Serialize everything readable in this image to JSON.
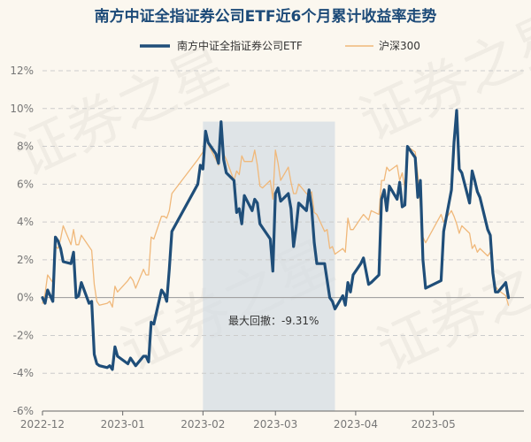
{
  "chart_data": {
    "type": "line",
    "title": "南方中证全指证券公司ETF近6个月累计收益率走势",
    "y_unit": "%",
    "ylim": [
      -6,
      12
    ],
    "yticks": [
      -6,
      -4,
      -2,
      0,
      2,
      4,
      6,
      8,
      10,
      12
    ],
    "xlim": [
      "2022-12-01",
      "2023-06-05"
    ],
    "xticks": [
      {
        "date": "2022-12-01",
        "label": "2022-12"
      },
      {
        "date": "2023-01-01",
        "label": "2023-01"
      },
      {
        "date": "2023-02-01",
        "label": "2023-02"
      },
      {
        "date": "2023-03-01",
        "label": "2023-03"
      },
      {
        "date": "2023-04-01",
        "label": "2023-04"
      },
      {
        "date": "2023-05-01",
        "label": "2023-05"
      }
    ],
    "grid": "horizontal dashed",
    "legend_position": "top",
    "series": [
      {
        "name": "南方中证全指证券公司ETF",
        "color": "#1f4e79",
        "points": [
          [
            "2022-12-01",
            0.0
          ],
          [
            "2022-12-02",
            -0.3
          ],
          [
            "2022-12-03",
            0.4
          ],
          [
            "2022-12-05",
            -0.2
          ],
          [
            "2022-12-06",
            3.2
          ],
          [
            "2022-12-07",
            3.0
          ],
          [
            "2022-12-08",
            2.6
          ],
          [
            "2022-12-09",
            1.9
          ],
          [
            "2022-12-12",
            1.8
          ],
          [
            "2022-12-13",
            2.4
          ],
          [
            "2022-12-14",
            0.0
          ],
          [
            "2022-12-15",
            0.1
          ],
          [
            "2022-12-16",
            0.8
          ],
          [
            "2022-12-19",
            -0.3
          ],
          [
            "2022-12-20",
            -0.2
          ],
          [
            "2022-12-21",
            -3.0
          ],
          [
            "2022-12-22",
            -3.5
          ],
          [
            "2022-12-23",
            -3.6
          ],
          [
            "2022-12-26",
            -3.7
          ],
          [
            "2022-12-27",
            -3.6
          ],
          [
            "2022-12-28",
            -3.8
          ],
          [
            "2022-12-29",
            -2.6
          ],
          [
            "2022-12-30",
            -3.1
          ],
          [
            "2023-01-03",
            -3.5
          ],
          [
            "2023-01-04",
            -3.2
          ],
          [
            "2023-01-05",
            -3.4
          ],
          [
            "2023-01-06",
            -3.6
          ],
          [
            "2023-01-09",
            -3.1
          ],
          [
            "2023-01-10",
            -3.1
          ],
          [
            "2023-01-11",
            -3.4
          ],
          [
            "2023-01-12",
            -1.3
          ],
          [
            "2023-01-13",
            -1.4
          ],
          [
            "2023-01-16",
            0.4
          ],
          [
            "2023-01-17",
            0.2
          ],
          [
            "2023-01-18",
            -0.2
          ],
          [
            "2023-01-19",
            1.5
          ],
          [
            "2023-01-20",
            3.5
          ],
          [
            "2023-01-30",
            6.0
          ],
          [
            "2023-01-31",
            7.0
          ],
          [
            "2023-02-01",
            6.8
          ],
          [
            "2023-02-02",
            8.8
          ],
          [
            "2023-02-03",
            8.2
          ],
          [
            "2023-02-06",
            7.6
          ],
          [
            "2023-02-07",
            7.1
          ],
          [
            "2023-02-08",
            9.3
          ],
          [
            "2023-02-09",
            7.3
          ],
          [
            "2023-02-10",
            6.6
          ],
          [
            "2023-02-13",
            6.2
          ],
          [
            "2023-02-14",
            4.5
          ],
          [
            "2023-02-15",
            4.7
          ],
          [
            "2023-02-16",
            3.9
          ],
          [
            "2023-02-17",
            5.4
          ],
          [
            "2023-02-20",
            4.6
          ],
          [
            "2023-02-21",
            5.2
          ],
          [
            "2023-02-22",
            5.0
          ],
          [
            "2023-02-23",
            3.9
          ],
          [
            "2023-02-24",
            3.7
          ],
          [
            "2023-02-27",
            3.1
          ],
          [
            "2023-02-28",
            1.4
          ],
          [
            "2023-03-01",
            5.5
          ],
          [
            "2023-03-02",
            5.8
          ],
          [
            "2023-03-03",
            5.1
          ],
          [
            "2023-03-06",
            5.5
          ],
          [
            "2023-03-07",
            4.7
          ],
          [
            "2023-03-08",
            2.7
          ],
          [
            "2023-03-09",
            3.7
          ],
          [
            "2023-03-10",
            5.0
          ],
          [
            "2023-03-13",
            4.6
          ],
          [
            "2023-03-14",
            5.7
          ],
          [
            "2023-03-15",
            4.7
          ],
          [
            "2023-03-16",
            2.9
          ],
          [
            "2023-03-17",
            1.8
          ],
          [
            "2023-03-20",
            1.8
          ],
          [
            "2023-03-21",
            0.9
          ],
          [
            "2023-03-22",
            0.0
          ],
          [
            "2023-03-23",
            -0.2
          ],
          [
            "2023-03-24",
            -0.6
          ],
          [
            "2023-03-27",
            0.1
          ],
          [
            "2023-03-28",
            -0.4
          ],
          [
            "2023-03-29",
            0.8
          ],
          [
            "2023-03-30",
            0.3
          ],
          [
            "2023-03-31",
            1.2
          ],
          [
            "2023-04-03",
            1.8
          ],
          [
            "2023-04-04",
            2.1
          ],
          [
            "2023-04-06",
            0.7
          ],
          [
            "2023-04-07",
            0.8
          ],
          [
            "2023-04-10",
            1.2
          ],
          [
            "2023-04-11",
            5.2
          ],
          [
            "2023-04-12",
            5.7
          ],
          [
            "2023-04-13",
            4.6
          ],
          [
            "2023-04-14",
            5.9
          ],
          [
            "2023-04-17",
            5.2
          ],
          [
            "2023-04-18",
            6.1
          ],
          [
            "2023-04-19",
            4.8
          ],
          [
            "2023-04-20",
            4.9
          ],
          [
            "2023-04-21",
            8.0
          ],
          [
            "2023-04-24",
            7.4
          ],
          [
            "2023-04-25",
            5.3
          ],
          [
            "2023-04-26",
            6.2
          ],
          [
            "2023-04-27",
            2.0
          ],
          [
            "2023-04-28",
            0.5
          ],
          [
            "2023-05-04",
            0.9
          ],
          [
            "2023-05-05",
            3.5
          ],
          [
            "2023-05-08",
            5.7
          ],
          [
            "2023-05-09",
            8.2
          ],
          [
            "2023-05-10",
            9.9
          ],
          [
            "2023-05-11",
            6.8
          ],
          [
            "2023-05-12",
            6.6
          ],
          [
            "2023-05-15",
            5.0
          ],
          [
            "2023-05-16",
            6.7
          ],
          [
            "2023-05-17",
            6.2
          ],
          [
            "2023-05-18",
            5.6
          ],
          [
            "2023-05-19",
            5.3
          ],
          [
            "2023-05-22",
            3.6
          ],
          [
            "2023-05-23",
            3.3
          ],
          [
            "2023-05-24",
            1.3
          ],
          [
            "2023-05-25",
            0.3
          ],
          [
            "2023-05-26",
            0.3
          ],
          [
            "2023-05-29",
            0.8
          ],
          [
            "2023-05-30",
            0.0
          ]
        ]
      },
      {
        "name": "沪深300",
        "color": "#f0b87a",
        "points": [
          [
            "2022-12-01",
            -0.3
          ],
          [
            "2022-12-02",
            0.2
          ],
          [
            "2022-12-03",
            1.2
          ],
          [
            "2022-12-05",
            0.8
          ],
          [
            "2022-12-06",
            2.7
          ],
          [
            "2022-12-07",
            2.6
          ],
          [
            "2022-12-08",
            3.1
          ],
          [
            "2022-12-09",
            3.8
          ],
          [
            "2022-12-12",
            2.8
          ],
          [
            "2022-12-13",
            3.6
          ],
          [
            "2022-12-14",
            2.8
          ],
          [
            "2022-12-15",
            2.8
          ],
          [
            "2022-12-16",
            3.3
          ],
          [
            "2022-12-19",
            2.7
          ],
          [
            "2022-12-20",
            2.5
          ],
          [
            "2022-12-21",
            0.7
          ],
          [
            "2022-12-22",
            -0.2
          ],
          [
            "2022-12-23",
            -0.4
          ],
          [
            "2022-12-26",
            -0.3
          ],
          [
            "2022-12-27",
            -0.2
          ],
          [
            "2022-12-28",
            -0.5
          ],
          [
            "2022-12-29",
            0.6
          ],
          [
            "2022-12-30",
            0.3
          ],
          [
            "2023-01-03",
            0.9
          ],
          [
            "2023-01-04",
            1.1
          ],
          [
            "2023-01-05",
            0.9
          ],
          [
            "2023-01-06",
            0.5
          ],
          [
            "2023-01-09",
            1.5
          ],
          [
            "2023-01-10",
            1.2
          ],
          [
            "2023-01-11",
            1.2
          ],
          [
            "2023-01-12",
            3.2
          ],
          [
            "2023-01-13",
            3.1
          ],
          [
            "2023-01-16",
            4.3
          ],
          [
            "2023-01-17",
            4.3
          ],
          [
            "2023-01-18",
            4.2
          ],
          [
            "2023-01-19",
            4.6
          ],
          [
            "2023-01-20",
            5.5
          ],
          [
            "2023-01-30",
            7.3
          ],
          [
            "2023-01-31",
            7.5
          ],
          [
            "2023-02-01",
            7.7
          ],
          [
            "2023-02-02",
            8.8
          ],
          [
            "2023-02-03",
            8.1
          ],
          [
            "2023-02-06",
            7.3
          ],
          [
            "2023-02-07",
            7.0
          ],
          [
            "2023-02-08",
            9.0
          ],
          [
            "2023-02-09",
            7.6
          ],
          [
            "2023-02-10",
            7.3
          ],
          [
            "2023-02-13",
            6.2
          ],
          [
            "2023-02-14",
            6.7
          ],
          [
            "2023-02-15",
            6.5
          ],
          [
            "2023-02-16",
            7.5
          ],
          [
            "2023-02-17",
            7.2
          ],
          [
            "2023-02-20",
            7.2
          ],
          [
            "2023-02-21",
            7.8
          ],
          [
            "2023-02-22",
            7.0
          ],
          [
            "2023-02-23",
            5.9
          ],
          [
            "2023-02-24",
            5.8
          ],
          [
            "2023-02-27",
            6.2
          ],
          [
            "2023-02-28",
            5.2
          ],
          [
            "2023-03-01",
            7.8
          ],
          [
            "2023-03-02",
            7.1
          ],
          [
            "2023-03-03",
            6.2
          ],
          [
            "2023-03-06",
            6.9
          ],
          [
            "2023-03-07",
            6.1
          ],
          [
            "2023-03-08",
            5.5
          ],
          [
            "2023-03-09",
            5.5
          ],
          [
            "2023-03-10",
            6.0
          ],
          [
            "2023-03-13",
            5.5
          ],
          [
            "2023-03-14",
            5.4
          ],
          [
            "2023-03-15",
            5.6
          ],
          [
            "2023-03-16",
            4.5
          ],
          [
            "2023-03-17",
            4.4
          ],
          [
            "2023-03-20",
            3.5
          ],
          [
            "2023-03-21",
            3.6
          ],
          [
            "2023-03-22",
            2.6
          ],
          [
            "2023-03-23",
            2.7
          ],
          [
            "2023-03-24",
            2.3
          ],
          [
            "2023-03-27",
            2.6
          ],
          [
            "2023-03-28",
            2.4
          ],
          [
            "2023-03-29",
            4.2
          ],
          [
            "2023-03-30",
            3.6
          ],
          [
            "2023-03-31",
            3.6
          ],
          [
            "2023-04-03",
            4.2
          ],
          [
            "2023-04-04",
            4.4
          ],
          [
            "2023-04-06",
            4.1
          ],
          [
            "2023-04-07",
            4.6
          ],
          [
            "2023-04-10",
            4.4
          ],
          [
            "2023-04-11",
            6.2
          ],
          [
            "2023-04-12",
            6.2
          ],
          [
            "2023-04-13",
            6.9
          ],
          [
            "2023-04-14",
            6.7
          ],
          [
            "2023-04-17",
            7.0
          ],
          [
            "2023-04-18",
            6.2
          ],
          [
            "2023-04-19",
            6.6
          ],
          [
            "2023-04-20",
            5.8
          ],
          [
            "2023-04-21",
            8.0
          ],
          [
            "2023-04-24",
            7.7
          ],
          [
            "2023-04-25",
            6.5
          ],
          [
            "2023-04-26",
            4.8
          ],
          [
            "2023-04-27",
            3.2
          ],
          [
            "2023-04-28",
            2.9
          ],
          [
            "2023-05-04",
            4.4
          ],
          [
            "2023-05-05",
            4.0
          ],
          [
            "2023-05-08",
            4.6
          ],
          [
            "2023-05-09",
            4.3
          ],
          [
            "2023-05-10",
            3.9
          ],
          [
            "2023-05-11",
            3.4
          ],
          [
            "2023-05-12",
            3.8
          ],
          [
            "2023-05-15",
            3.4
          ],
          [
            "2023-05-16",
            2.6
          ],
          [
            "2023-05-17",
            2.8
          ],
          [
            "2023-05-18",
            2.4
          ],
          [
            "2023-05-19",
            2.6
          ],
          [
            "2023-05-22",
            2.2
          ],
          [
            "2023-05-23",
            2.4
          ],
          [
            "2023-05-24",
            1.6
          ],
          [
            "2023-05-25",
            0.6
          ],
          [
            "2023-05-26",
            0.4
          ],
          [
            "2023-05-29",
            0.1
          ],
          [
            "2023-05-30",
            -0.4
          ]
        ]
      }
    ],
    "annotations": [
      {
        "type": "shaded_range",
        "label": "最大回撤：-9.31%",
        "from": "2023-02-01",
        "to": "2023-03-24",
        "color": "#d5dde4"
      }
    ],
    "watermark": "证券之星"
  }
}
